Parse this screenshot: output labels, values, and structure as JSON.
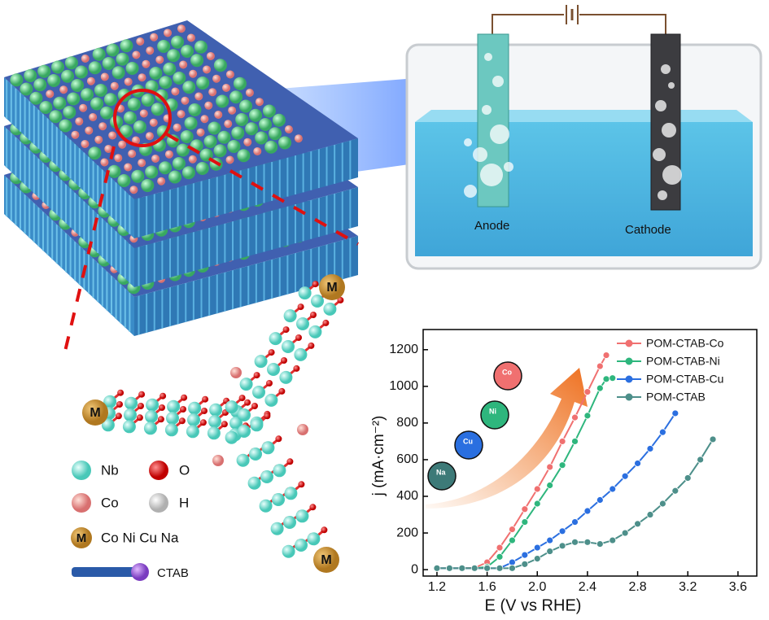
{
  "chart_data": {
    "type": "line",
    "xlabel": "E (V vs RHE)",
    "ylabel": "j (mA·cm⁻²)",
    "xlim": [
      1.09,
      3.75
    ],
    "ylim": [
      -35,
      1310
    ],
    "xticks": [
      1.2,
      1.6,
      {
        "value": 2,
        "label": "2.0"
      },
      2.4,
      2.8,
      3.2,
      3.6
    ],
    "yticks": [
      0,
      200,
      400,
      600,
      800,
      1000,
      1200
    ],
    "legend": "upper right",
    "series": [
      {
        "name": "POM-CTAB-Co",
        "color": "#f07070",
        "x": [
          1.2,
          1.3,
          1.4,
          1.5,
          1.6,
          1.7,
          1.8,
          1.9,
          2.0,
          2.1,
          2.2,
          2.3,
          2.4,
          2.5,
          2.55
        ],
        "values": [
          8,
          8,
          8,
          10,
          40,
          120,
          220,
          330,
          440,
          560,
          700,
          830,
          970,
          1110,
          1170
        ]
      },
      {
        "name": "POM-CTAB-Ni",
        "color": "#2eb67d",
        "x": [
          1.2,
          1.3,
          1.4,
          1.5,
          1.6,
          1.7,
          1.8,
          1.9,
          2.0,
          2.1,
          2.2,
          2.3,
          2.4,
          2.5,
          2.55,
          2.6
        ],
        "values": [
          8,
          8,
          8,
          8,
          15,
          70,
          160,
          260,
          360,
          460,
          570,
          700,
          840,
          990,
          1040,
          1045
        ]
      },
      {
        "name": "POM-CTAB-Cu",
        "color": "#2b6fe0",
        "x": [
          1.2,
          1.3,
          1.4,
          1.5,
          1.6,
          1.7,
          1.8,
          1.9,
          2.0,
          2.1,
          2.2,
          2.3,
          2.4,
          2.5,
          2.6,
          2.7,
          2.8,
          2.9,
          3.0,
          3.1
        ],
        "values": [
          8,
          8,
          8,
          8,
          8,
          8,
          40,
          80,
          120,
          160,
          210,
          260,
          320,
          380,
          440,
          510,
          580,
          660,
          750,
          853
        ]
      },
      {
        "name": "POM-CTAB",
        "color": "#4d8f8a",
        "x": [
          1.2,
          1.3,
          1.4,
          1.5,
          1.6,
          1.7,
          1.8,
          1.9,
          2.0,
          2.1,
          2.2,
          2.3,
          2.4,
          2.5,
          2.6,
          2.7,
          2.8,
          2.9,
          3.0,
          3.1,
          3.2,
          3.3,
          3.4
        ],
        "values": [
          8,
          8,
          8,
          8,
          8,
          8,
          8,
          30,
          60,
          100,
          130,
          150,
          150,
          140,
          160,
          200,
          250,
          300,
          360,
          430,
          500,
          600,
          711
        ]
      }
    ],
    "inset_labels": [
      "Na",
      "Cu",
      "Ni",
      "Co"
    ]
  },
  "cell": {
    "anode": "Anode",
    "cathode": "Cathode"
  },
  "structure_labels": [
    "M",
    "M",
    "M"
  ],
  "atom_legend": {
    "nb": "Nb",
    "o": "O",
    "co": "Co",
    "h": "H",
    "m": "M",
    "metals": "Co Ni Cu Na",
    "ctab": "CTAB"
  }
}
